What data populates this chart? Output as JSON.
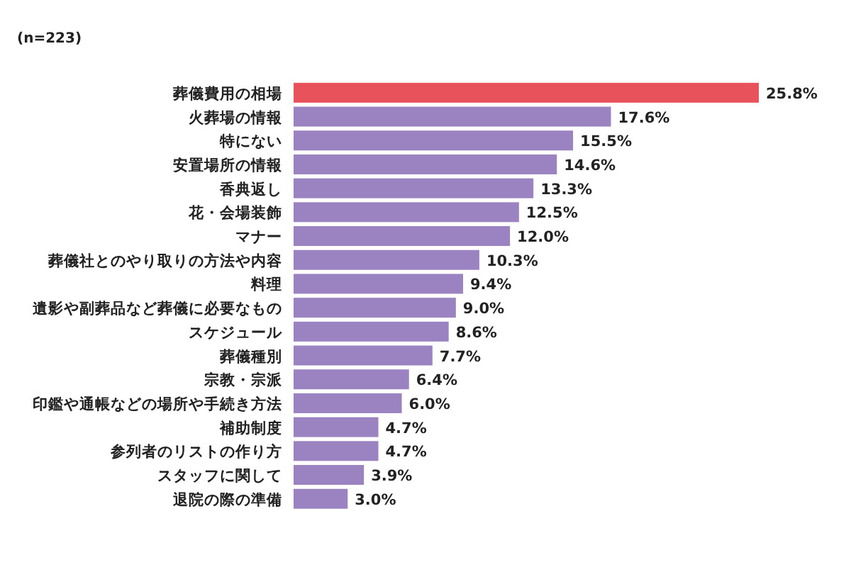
{
  "chart_data": {
    "type": "bar",
    "orientation": "horizontal",
    "annotations": [
      "(n=223)"
    ],
    "categories": [
      "葬儀費用の相場",
      "火葬場の情報",
      "特にない",
      "安置場所の情報",
      "香典返し",
      "花・会場装飾",
      "マナー",
      "葬儀社とのやり取りの方法や内容",
      "料理",
      "遺影や副葬品など葬儀に必要なもの",
      "スケジュール",
      "葬儀種別",
      "宗教・宗派",
      "印鑑や通帳などの場所や手続き方法",
      "補助制度",
      "参列者のリストの作り方",
      "スタッフに関して",
      "退院の際の準備"
    ],
    "values": [
      25.8,
      17.6,
      15.5,
      14.6,
      13.3,
      12.5,
      12.0,
      10.3,
      9.4,
      9.0,
      8.6,
      7.7,
      6.4,
      6.0,
      4.7,
      4.7,
      3.9,
      3.0
    ],
    "value_labels": [
      "25.8%",
      "17.6%",
      "15.5%",
      "14.6%",
      "13.3%",
      "12.5%",
      "12.0%",
      "10.3%",
      "9.4%",
      "9.0%",
      "8.6%",
      "7.7%",
      "6.4%",
      "6.0%",
      "4.7%",
      "4.7%",
      "3.9%",
      "3.0%"
    ],
    "colors": [
      "#e8525a",
      "#9b83c2",
      "#9b83c2",
      "#9b83c2",
      "#9b83c2",
      "#9b83c2",
      "#9b83c2",
      "#9b83c2",
      "#9b83c2",
      "#9b83c2",
      "#9b83c2",
      "#9b83c2",
      "#9b83c2",
      "#9b83c2",
      "#9b83c2",
      "#9b83c2",
      "#9b83c2",
      "#9b83c2"
    ]
  }
}
